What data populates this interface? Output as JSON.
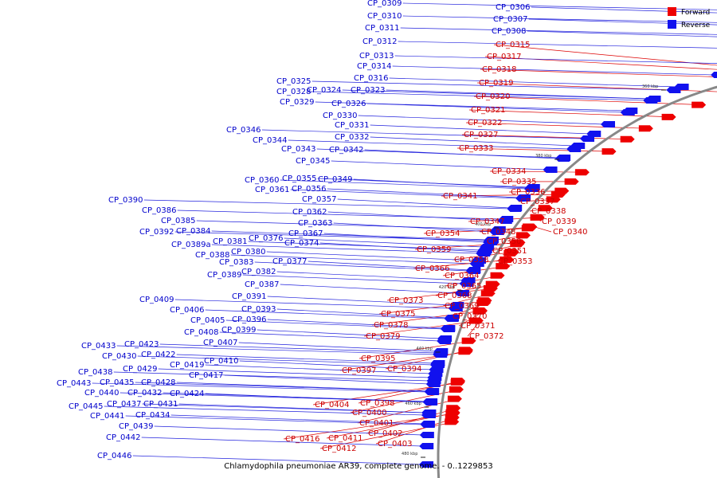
{
  "caption": "Chlamydophila pneumoniae AR39, complete genome. - 0..1229853",
  "colors": {
    "forward": "#ee0000",
    "reverse": "#1111ee",
    "forward_line": "#dd0000",
    "reverse_line": "#2222dd",
    "backbone": "#888888"
  },
  "legend": [
    {
      "label": "Forward",
      "color": "#ee0000"
    },
    {
      "label": "Reverse",
      "color": "#1111ee"
    }
  ],
  "ticks": [
    "340 kbp",
    "360 kbp",
    "380 kbp",
    "400 kbp",
    "420 kbp",
    "440 kbp",
    "460 kbp",
    "480 kbp"
  ],
  "forward_genes": [
    "CP_0315",
    "CP_0317",
    "CP_0318",
    "CP_0319",
    "CP_0320",
    "CP_0321",
    "CP_0322",
    "CP_0327",
    "CP_0333",
    "CP_0334",
    "CP_0335",
    "CP_0336",
    "CP_0337",
    "CP_0338",
    "CP_0339",
    "CP_0340",
    "CP_0341",
    "CP_0347",
    "CP_0348",
    "CP_0350",
    "CP_0351",
    "CP_0353",
    "CP_0354",
    "CP_0358",
    "CP_0359",
    "CP_0366",
    "CP_0364",
    "CP_0365",
    "CP_0368",
    "CP_0369",
    "CP_0370",
    "CP_0371",
    "CP_0372",
    "CP_0373",
    "CP_0375",
    "CP_0378",
    "CP_0379",
    "CP_0395",
    "CP_0394",
    "CP_0397",
    "CP_0398",
    "CP_0400",
    "CP_0401",
    "CP_0402",
    "CP_0403",
    "CP_0404",
    "CP_0411",
    "CP_0412",
    "CP_0416"
  ],
  "reverse_genes": [
    "CP_0309",
    "CP_0306",
    "CP_0307",
    "CP_0308",
    "CP_0310",
    "CP_0311",
    "CP_0312",
    "CP_0313",
    "CP_0314",
    "CP_0316",
    "CP_0325",
    "CP_0328",
    "CP_0324",
    "CP_0323",
    "CP_0329",
    "CP_0326",
    "CP_0330",
    "CP_0331",
    "CP_0332",
    "CP_0346",
    "CP_0344",
    "CP_0343",
    "CP_0342",
    "CP_0345",
    "CP_0360",
    "CP_0355",
    "CP_0349",
    "CP_0361",
    "CP_0356",
    "CP_0357",
    "CP_0362",
    "CP_0363",
    "CP_0390",
    "CP_0386",
    "CP_0385",
    "CP_0392",
    "CP_0384",
    "CP_0367",
    "CP_0376",
    "CP_0374",
    "CP_0381",
    "CP_0389a",
    "CP_0380",
    "CP_0388",
    "CP_0383",
    "CP_0377",
    "CP_0382",
    "CP_0389",
    "CP_0387",
    "CP_0391",
    "CP_0409",
    "CP_0393",
    "CP_0406",
    "CP_0405",
    "CP_0396",
    "CP_0408",
    "CP_0399",
    "CP_0407",
    "CP_0423",
    "CP_0433",
    "CP_0422",
    "CP_0430",
    "CP_0419",
    "CP_0410",
    "CP_0429",
    "CP_0417",
    "CP_0438",
    "CP_0435",
    "CP_0428",
    "CP_0443",
    "CP_0440",
    "CP_0432",
    "CP_0424",
    "CP_0437",
    "CP_0431",
    "CP_0445",
    "CP_0441",
    "CP_0434",
    "CP_0439",
    "CP_0442",
    "CP_0446"
  ]
}
